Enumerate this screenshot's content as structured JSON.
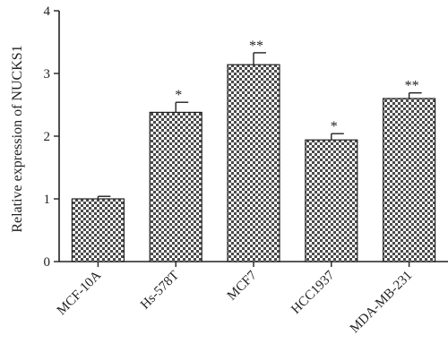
{
  "chart_data": {
    "type": "bar",
    "categories": [
      "MCF-10A",
      "Hs-578T",
      "MCF7",
      "HCC1937",
      "MDA-MB-231"
    ],
    "values": [
      1.0,
      2.38,
      3.14,
      1.94,
      2.6
    ],
    "errors": [
      0.04,
      0.16,
      0.19,
      0.1,
      0.09
    ],
    "significance": [
      "",
      "*",
      "**",
      "*",
      "**"
    ],
    "ylabel": "Relative expression of NUCKS1",
    "xlabel": "",
    "ylim": [
      0,
      4
    ],
    "yticks": [
      0,
      1,
      2,
      3,
      4
    ],
    "grid": false,
    "bar_fill": "checkerboard",
    "colors": {
      "bar_dark": "#4a4a4a",
      "bar_light": "#ffffff",
      "axis": "#222222"
    }
  }
}
